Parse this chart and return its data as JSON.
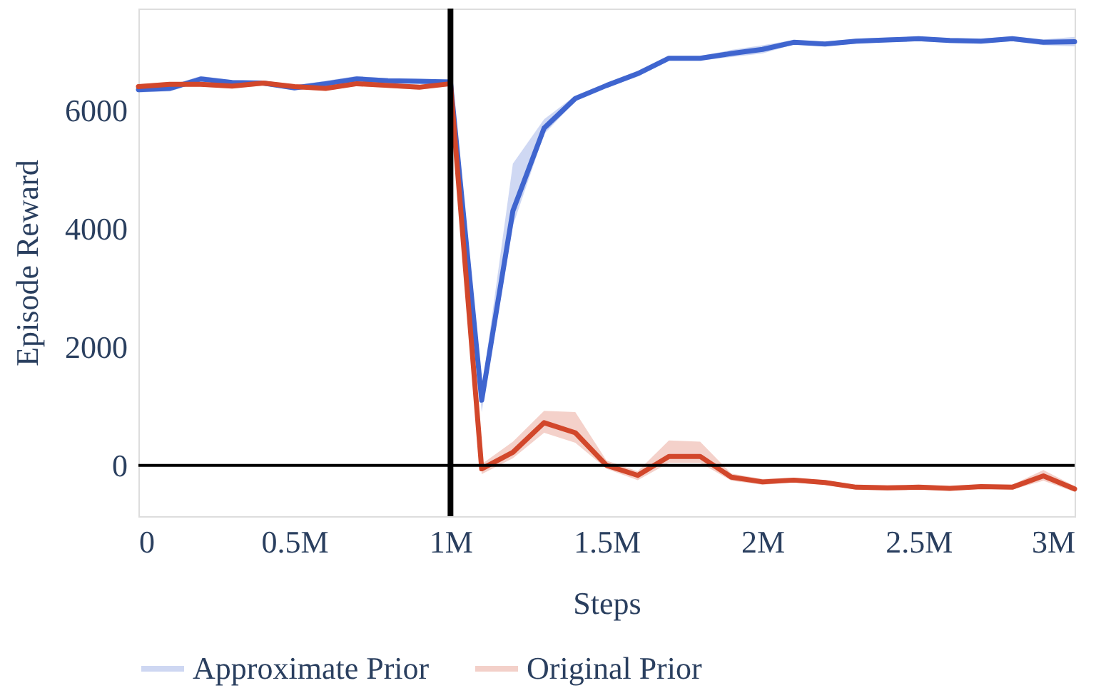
{
  "chart_data": {
    "type": "line",
    "xlabel": "Steps",
    "ylabel": "Episode Reward",
    "x": [
      0,
      100000,
      200000,
      300000,
      400000,
      500000,
      600000,
      700000,
      800000,
      900000,
      1000000,
      1100000,
      1200000,
      1300000,
      1400000,
      1500000,
      1600000,
      1700000,
      1800000,
      1900000,
      2000000,
      2100000,
      2200000,
      2300000,
      2400000,
      2500000,
      2600000,
      2700000,
      2800000,
      2900000,
      3000000
    ],
    "series": [
      {
        "name": "Approximate Prior",
        "color": "#3f65cf",
        "values": [
          6350,
          6370,
          6530,
          6470,
          6460,
          6380,
          6450,
          6530,
          6500,
          6490,
          6480,
          1100,
          4300,
          5700,
          6200,
          6420,
          6620,
          6880,
          6880,
          6960,
          7030,
          7150,
          7120,
          7170,
          7190,
          7210,
          7180,
          7170,
          7210,
          7150,
          7160
        ],
        "lower": [
          6300,
          6320,
          6480,
          6430,
          6420,
          6340,
          6400,
          6480,
          6460,
          6450,
          6440,
          900,
          4050,
          5600,
          6150,
          6380,
          6570,
          6840,
          6840,
          6900,
          6960,
          7110,
          7080,
          7130,
          7150,
          7170,
          7140,
          7130,
          7170,
          7100,
          7080
        ],
        "upper": [
          6400,
          6420,
          6580,
          6510,
          6500,
          6420,
          6500,
          6580,
          6540,
          6530,
          6520,
          1250,
          5100,
          5850,
          6250,
          6460,
          6670,
          6920,
          6920,
          7020,
          7100,
          7190,
          7160,
          7210,
          7230,
          7250,
          7220,
          7210,
          7250,
          7200,
          7240
        ]
      },
      {
        "name": "Original Prior",
        "color": "#d2472b",
        "values": [
          6400,
          6440,
          6440,
          6410,
          6460,
          6400,
          6370,
          6450,
          6420,
          6390,
          6450,
          -60,
          220,
          720,
          550,
          0,
          -170,
          150,
          150,
          -200,
          -280,
          -250,
          -290,
          -370,
          -380,
          -370,
          -390,
          -360,
          -370,
          -180,
          -400
        ],
        "lower": [
          6360,
          6400,
          6400,
          6370,
          6420,
          6360,
          6330,
          6410,
          6380,
          6350,
          6410,
          -150,
          120,
          550,
          380,
          -60,
          -250,
          40,
          40,
          -260,
          -330,
          -290,
          -330,
          -410,
          -420,
          -410,
          -430,
          -400,
          -410,
          -260,
          -450
        ],
        "upper": [
          6440,
          6480,
          6480,
          6450,
          6500,
          6440,
          6410,
          6490,
          6460,
          6430,
          6490,
          20,
          400,
          920,
          900,
          80,
          -100,
          420,
          400,
          -140,
          -230,
          -210,
          -250,
          -330,
          -340,
          -330,
          -350,
          -320,
          -330,
          -80,
          -350
        ]
      }
    ],
    "xlim": [
      0,
      3000000
    ],
    "xticks": [
      0,
      {
        "value": 500000,
        "label": "0.5M"
      },
      {
        "value": 1000000,
        "label": "1M"
      },
      {
        "value": 1500000,
        "label": "1.5M"
      },
      {
        "value": 2000000,
        "label": "2M"
      },
      {
        "value": 2500000,
        "label": "2.5M"
      },
      {
        "value": 3000000,
        "label": "3M"
      }
    ],
    "ylim": [
      -860,
      7720
    ],
    "yticks": [
      0,
      2000,
      4000,
      6000
    ],
    "ref_lines": [
      {
        "axis": "x",
        "value": 1000000,
        "color": "#000000"
      },
      {
        "axis": "y",
        "value": 0,
        "color": "#000000"
      }
    ],
    "grid": false,
    "legend": "bottom",
    "line_style": "solid",
    "marker": "none"
  }
}
